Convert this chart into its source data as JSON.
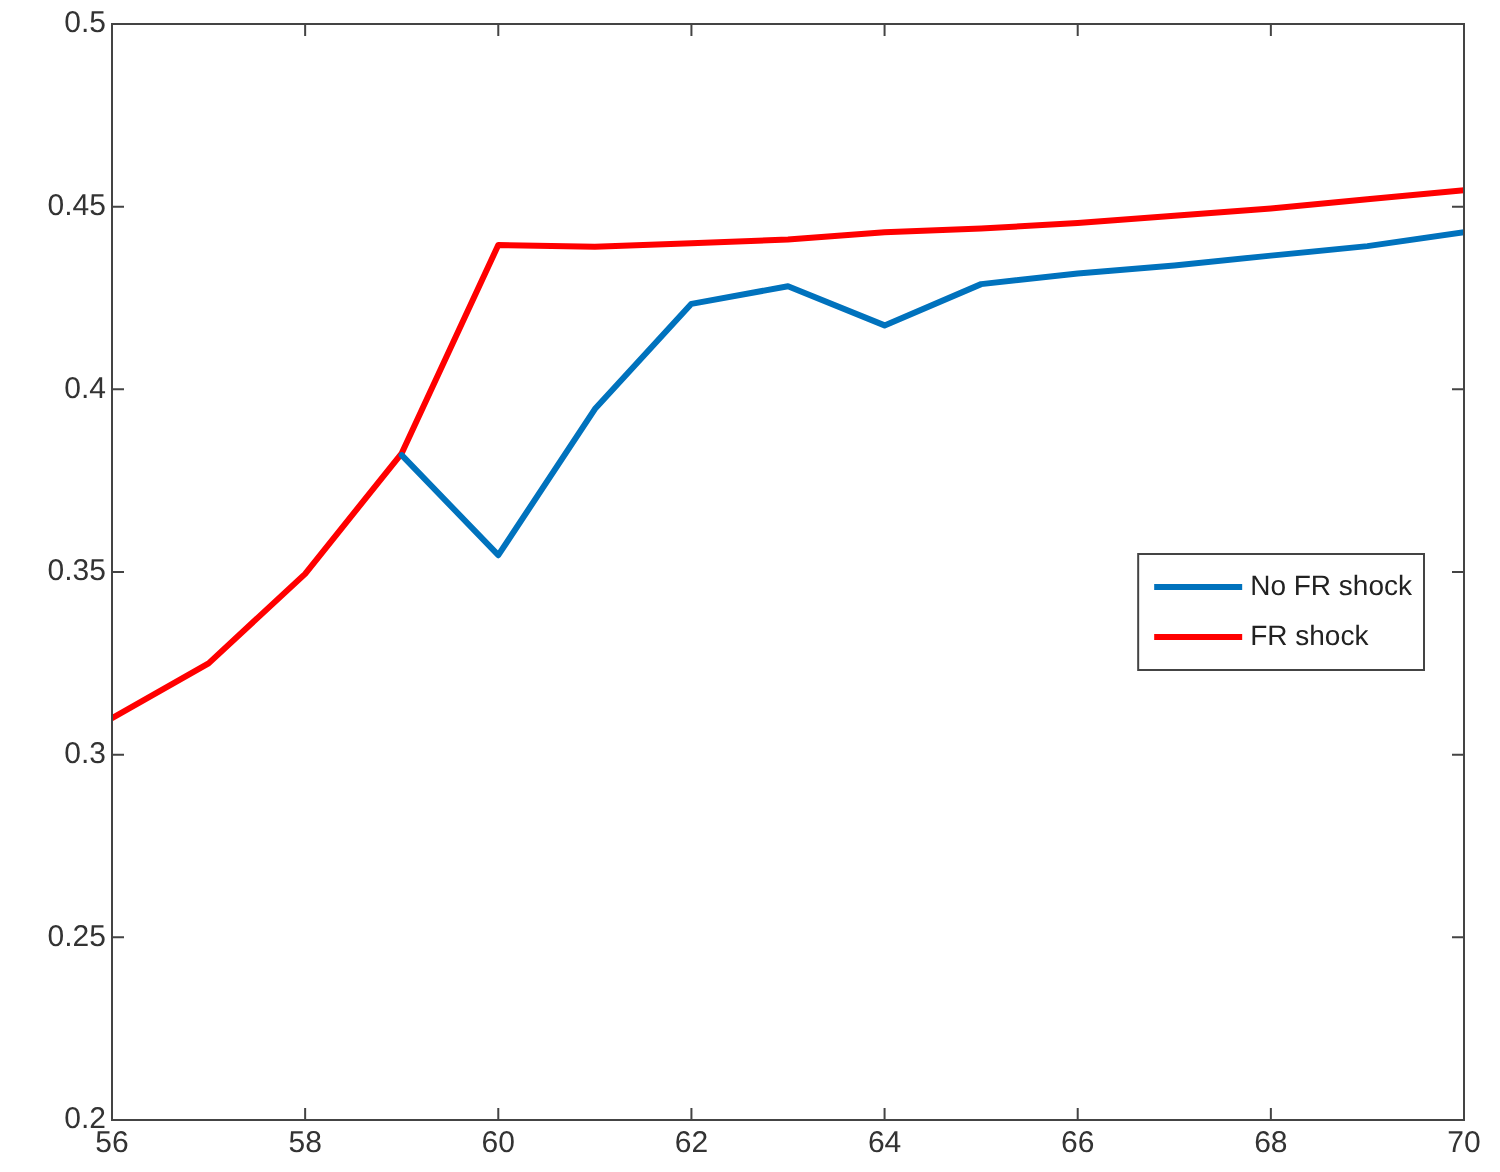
{
  "chart_data": {
    "type": "line",
    "x": [
      56,
      57,
      58,
      59,
      60,
      61,
      62,
      63,
      64,
      65,
      66,
      67,
      68,
      69,
      70
    ],
    "series": [
      {
        "name": "No FR shock",
        "color": "#0072bd",
        "values": [
          null,
          null,
          null,
          0.382,
          0.3546,
          0.3946,
          0.4234,
          0.4282,
          0.4175,
          0.4288,
          0.4317,
          0.4339,
          0.4366,
          0.4392,
          0.443
        ]
      },
      {
        "name": "FR shock",
        "color": "#ff0000",
        "values": [
          0.31,
          0.325,
          0.3495,
          0.3825,
          0.4395,
          0.439,
          0.44,
          0.441,
          0.443,
          0.444,
          0.4455,
          0.4475,
          0.4495,
          0.452,
          0.4545
        ]
      }
    ],
    "xlim": [
      56,
      70
    ],
    "xticks": [
      56,
      58,
      60,
      62,
      64,
      66,
      68,
      70
    ],
    "ylim": [
      0.2,
      0.5
    ],
    "yticks": [
      0.2,
      0.25,
      0.3,
      0.35,
      0.4,
      0.45,
      0.5
    ],
    "grid": false,
    "legend": "right",
    "marker": "none",
    "line_style": "solid"
  }
}
